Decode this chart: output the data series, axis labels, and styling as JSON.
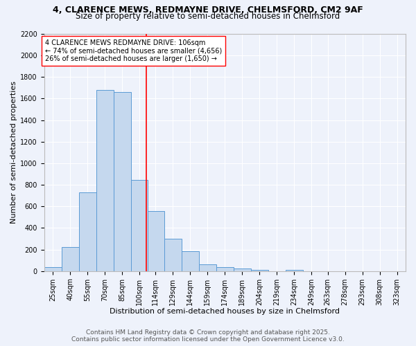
{
  "title1": "4, CLARENCE MEWS, REDMAYNE DRIVE, CHELMSFORD, CM2 9AF",
  "title2": "Size of property relative to semi-detached houses in Chelmsford",
  "xlabel": "Distribution of semi-detached houses by size in Chelmsford",
  "ylabel": "Number of semi-detached properties",
  "categories": [
    "25sqm",
    "40sqm",
    "55sqm",
    "70sqm",
    "85sqm",
    "100sqm",
    "114sqm",
    "129sqm",
    "144sqm",
    "159sqm",
    "174sqm",
    "189sqm",
    "204sqm",
    "219sqm",
    "234sqm",
    "249sqm",
    "263sqm",
    "278sqm",
    "293sqm",
    "308sqm",
    "323sqm"
  ],
  "values": [
    40,
    225,
    730,
    1680,
    1660,
    845,
    555,
    300,
    185,
    65,
    35,
    22,
    10,
    0,
    10,
    0,
    0,
    0,
    0,
    0,
    0
  ],
  "bar_color": "#c5d8ee",
  "bar_edge_color": "#5b9bd5",
  "property_label": "4 CLARENCE MEWS REDMAYNE DRIVE: 106sqm",
  "smaller_pct": "74%",
  "smaller_count": "4,656",
  "larger_pct": "26%",
  "larger_count": "1,650",
  "vline_color": "red",
  "vline_x": 106,
  "ylim": [
    0,
    2200
  ],
  "yticks": [
    0,
    200,
    400,
    600,
    800,
    1000,
    1200,
    1400,
    1600,
    1800,
    2000,
    2200
  ],
  "footnote1": "Contains HM Land Registry data © Crown copyright and database right 2025.",
  "footnote2": "Contains public sector information licensed under the Open Government Licence v3.0.",
  "background_color": "#eef2fb",
  "grid_color": "#ffffff",
  "title_fontsize": 9,
  "subtitle_fontsize": 8.5,
  "axis_label_fontsize": 8,
  "tick_fontsize": 7,
  "annotation_fontsize": 7,
  "footnote_fontsize": 6.5
}
